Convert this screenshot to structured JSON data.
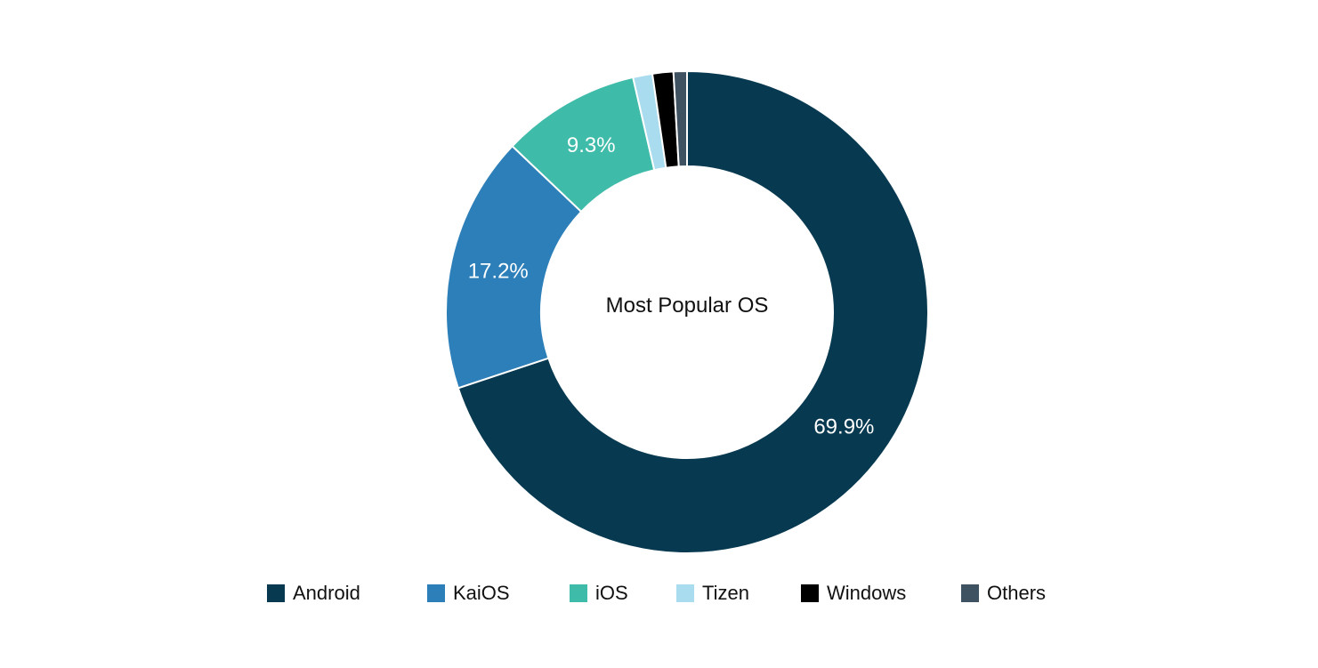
{
  "chart_data": {
    "type": "pie",
    "donut": true,
    "center_label": "Most Popular OS",
    "categories": [
      "Android",
      "KaiOS",
      "iOS",
      "Tizen",
      "Windows",
      "Others"
    ],
    "values": [
      69.9,
      17.2,
      9.3,
      1.3,
      1.4,
      0.9
    ],
    "value_labels": [
      "69.9%",
      "17.2%",
      "9.3%",
      "",
      "",
      ""
    ],
    "colors": [
      "#073950",
      "#2c7fb8",
      "#3fbba9",
      "#a9dcef",
      "#000000",
      "#3f5262"
    ],
    "legend_position": "bottom"
  }
}
